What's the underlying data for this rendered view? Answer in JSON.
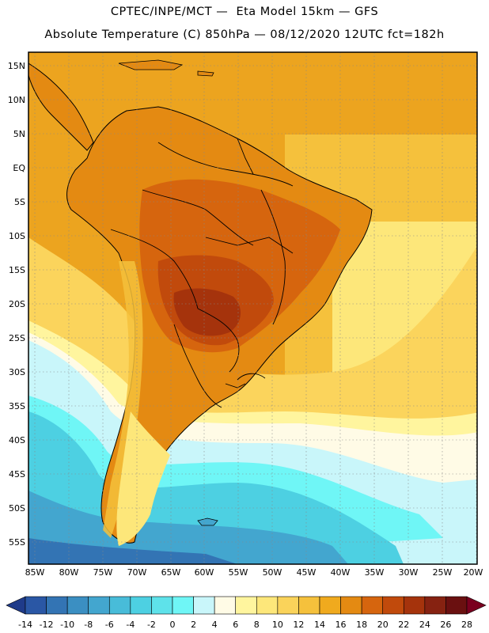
{
  "header": {
    "line1": "CPTEC/INPE/MCT —  Eta Model 15km — GFS",
    "line2": "Absolute Temperature (C) 850hPa — 08/12/2020 12UTC fct=182h"
  },
  "axes": {
    "lat_labels": [
      "15N",
      "10N",
      "5N",
      "EQ",
      "5S",
      "10S",
      "15S",
      "20S",
      "25S",
      "30S",
      "35S",
      "40S",
      "45S",
      "50S",
      "55S"
    ],
    "lon_labels": [
      "85W",
      "80W",
      "75W",
      "70W",
      "65W",
      "60W",
      "55W",
      "50W",
      "45W",
      "40W",
      "35W",
      "30W",
      "25W",
      "20W"
    ]
  },
  "colorbar": {
    "ticks": [
      "-14",
      "-12",
      "-10",
      "-8",
      "-6",
      "-4",
      "-2",
      "0",
      "2",
      "4",
      "6",
      "8",
      "10",
      "12",
      "14",
      "16",
      "18",
      "20",
      "22",
      "24",
      "26",
      "28"
    ],
    "colors": [
      "#1f3b8a",
      "#2a57a5",
      "#3374b4",
      "#3b8fc2",
      "#43a6cf",
      "#48bcd9",
      "#4dd0e2",
      "#5ee2ea",
      "#6ff6f6",
      "#c9f6fa",
      "#fffbe6",
      "#fff59e",
      "#fde77a",
      "#fad35a",
      "#f5c13c",
      "#f0aa1e",
      "#e48a12",
      "#d6650e",
      "#c14a0c",
      "#a5330c",
      "#862211",
      "#6a1010",
      "#7a001f"
    ]
  },
  "map": {
    "colors": {
      "ocean_north": "#eca41f",
      "ocean_mid": "#f5c13c",
      "ocean_pale": "#fde77a",
      "pale_yellow": "#fff59e",
      "cream": "#fffbe6",
      "light_cyan": "#c9f6fa",
      "cyan": "#6ff6f6",
      "cyan2": "#4dd0e2",
      "mid_blue": "#43a6cf",
      "deep_blue": "#3374b4",
      "land_warm": "#e48a12",
      "land_hot": "#d6650e",
      "land_hotter": "#c14a0c",
      "land_hottest": "#a5330c",
      "andes": "#e8941a"
    }
  }
}
